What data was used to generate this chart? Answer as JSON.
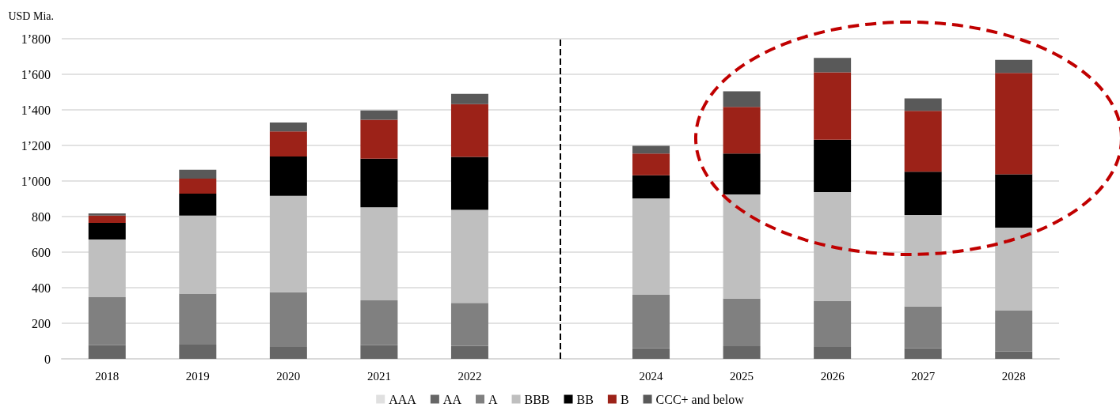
{
  "chart_data": {
    "type": "bar",
    "stacked": true,
    "ylabel": "USD Mia.",
    "x": [
      2018,
      2019,
      2020,
      2021,
      2022,
      2024,
      2025,
      2026,
      2027,
      2028
    ],
    "series": [
      {
        "name": "AAA",
        "color": "#e0e0e0",
        "values": [
          null,
          null,
          null,
          null,
          null,
          null,
          null,
          null,
          null,
          null
        ]
      },
      {
        "name": "AA",
        "color": "#666666",
        "values": [
          77,
          80,
          67,
          77,
          73,
          60,
          71,
          67,
          60,
          42
        ]
      },
      {
        "name": "A",
        "color": "#808080",
        "values": [
          270,
          287,
          308,
          252,
          242,
          302,
          268,
          258,
          235,
          229
        ]
      },
      {
        "name": "BBB",
        "color": "#bfbfbf",
        "values": [
          324,
          439,
          542,
          523,
          523,
          540,
          586,
          613,
          514,
          467
        ]
      },
      {
        "name": "BB",
        "color": "#000000",
        "values": [
          93,
          123,
          221,
          274,
          298,
          130,
          230,
          294,
          243,
          300
        ]
      },
      {
        "name": "B",
        "color": "#9c2218",
        "values": [
          42,
          84,
          141,
          219,
          296,
          122,
          262,
          379,
          343,
          570
        ]
      },
      {
        "name": "CCC+ and below",
        "color": "#595959",
        "values": [
          12,
          50,
          50,
          52,
          58,
          44,
          87,
          81,
          69,
          73
        ]
      }
    ],
    "xlim": [
      2017.5,
      2028.5
    ],
    "xticks": [
      2018,
      2019,
      2020,
      2021,
      2022,
      2024,
      2025,
      2026,
      2027,
      2028
    ],
    "ylim": [
      0,
      1800
    ],
    "yticks": [
      0,
      200,
      400,
      600,
      800,
      {
        "value": 1000,
        "label": "1’000"
      },
      {
        "value": 1200,
        "label": "1’200"
      },
      {
        "value": 1400,
        "label": "1’400"
      },
      {
        "value": 1600,
        "label": "1’600"
      },
      {
        "value": 1800,
        "label": "1’800"
      }
    ],
    "ref_lines": [
      {
        "axis": "x",
        "value": 2023,
        "line_style": "dashed",
        "color": "#000000"
      }
    ],
    "grid": "y",
    "legend": "bottom"
  }
}
